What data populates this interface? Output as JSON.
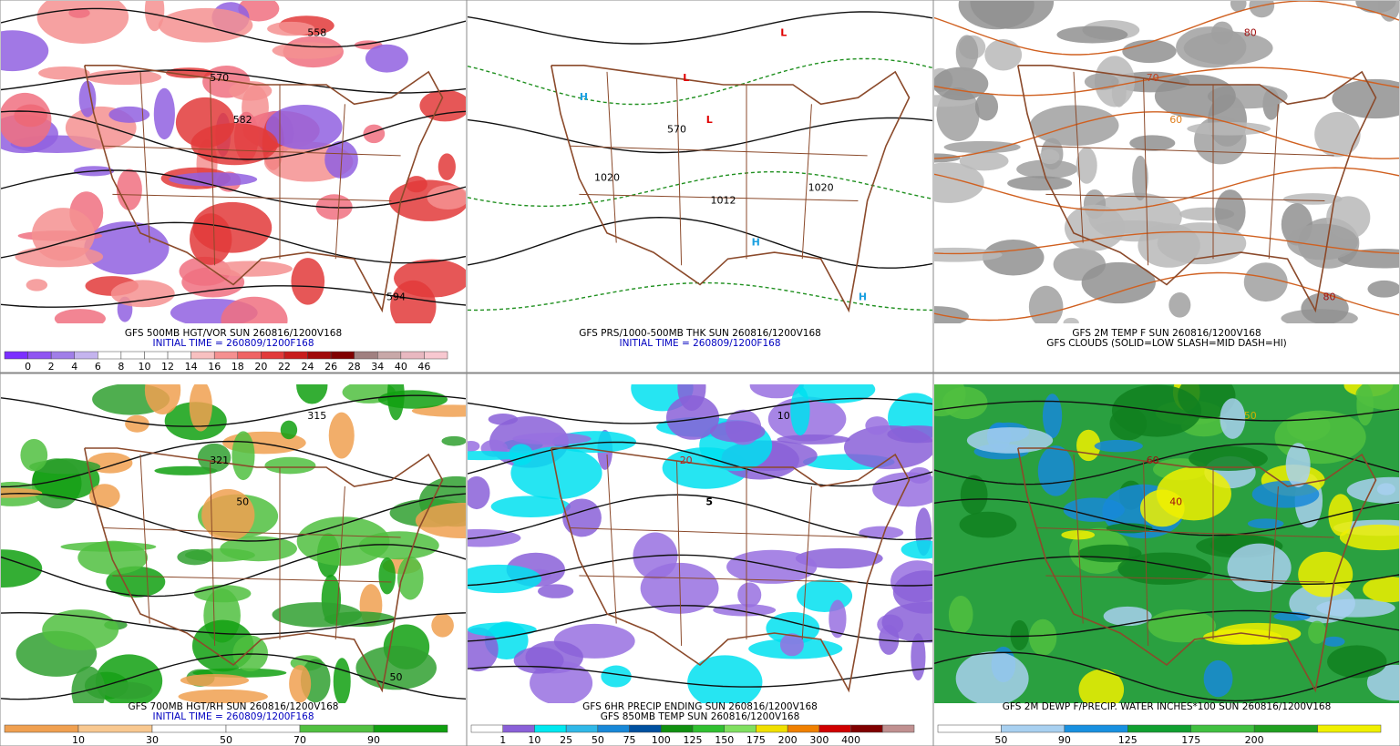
{
  "panels": [
    {
      "captions": [
        {
          "text": "GFS 500MB HGT/VOR SUN 260816/1200V168",
          "color": "#000000"
        },
        {
          "text": "INITIAL TIME = 260809/1200F168",
          "color": "#0000c0"
        }
      ],
      "map_labels": [
        {
          "text": "558",
          "color": "#000000"
        },
        {
          "text": "570",
          "color": "#000000"
        },
        {
          "text": "582",
          "color": "#000000"
        },
        {
          "text": "594",
          "color": "#000000"
        }
      ],
      "colorbar": {
        "labels": [
          0,
          2,
          4,
          6,
          8,
          10,
          12,
          14,
          16,
          18,
          20,
          22,
          24,
          26,
          28,
          34,
          40,
          46
        ],
        "colors": [
          "#7b2fff",
          "#8f55f2",
          "#a07ee8",
          "#c4b4ee",
          "#ffffff",
          "#ffffff",
          "#ffffff",
          "#ffffff",
          "#f8c0c0",
          "#f59090",
          "#ef6464",
          "#e23a3a",
          "#c81c1c",
          "#a00808",
          "#800000",
          "#a08080",
          "#c8a8a8",
          "#e8b8c0",
          "#f8c8d0"
        ]
      }
    },
    {
      "captions": [
        {
          "text": "GFS PRS/1000-500MB THK SUN 260816/1200V168",
          "color": "#000000"
        },
        {
          "text": "INITIAL TIME = 260809/1200F168",
          "color": "#0000c0"
        }
      ],
      "map_labels": [
        {
          "text": "L",
          "color": "#e00000"
        },
        {
          "text": "L",
          "color": "#e00000"
        },
        {
          "text": "L",
          "color": "#e00000"
        },
        {
          "text": "H",
          "color": "#1ca0e0"
        },
        {
          "text": "H",
          "color": "#1ca0e0"
        },
        {
          "text": "H",
          "color": "#1ca0e0"
        },
        {
          "text": "1012",
          "color": "#000000"
        },
        {
          "text": "1020",
          "color": "#000000"
        },
        {
          "text": "1020",
          "color": "#000000"
        },
        {
          "text": "570",
          "color": "#000000"
        }
      ]
    },
    {
      "captions": [
        {
          "text": "GFS 2M TEMP F SUN 260816/1200V168",
          "color": "#000000"
        },
        {
          "text": "GFS CLOUDS (SOLID=LOW SLASH=MID DASH=HI)",
          "color": "#000000"
        }
      ],
      "map_labels": [
        {
          "text": "80",
          "color": "#a01010"
        },
        {
          "text": "70",
          "color": "#c04020"
        },
        {
          "text": "60",
          "color": "#e08020"
        },
        {
          "text": "80",
          "color": "#a01010"
        }
      ]
    },
    {
      "captions": [
        {
          "text": "GFS 700MB HGT/RH SUN 260816/1200V168",
          "color": "#000000"
        },
        {
          "text": "INITIAL TIME = 260809/1200F168",
          "color": "#0000c0"
        }
      ],
      "map_labels": [
        {
          "text": "315",
          "color": "#000000"
        },
        {
          "text": "321",
          "color": "#000000"
        },
        {
          "text": "50",
          "color": "#000000"
        },
        {
          "text": "50",
          "color": "#000000"
        }
      ],
      "colorbar": {
        "labels": [
          10,
          30,
          50,
          70,
          90
        ],
        "colors": [
          "#f0a050",
          "#f8c890",
          "#ffffff",
          "#ffffff",
          "#50c040",
          "#10a010"
        ]
      }
    },
    {
      "captions": [
        {
          "text": "GFS 6HR PRECIP ENDING SUN 260816/1200V168",
          "color": "#000000"
        },
        {
          "text": "GFS 850MB TEMP SUN 260816/1200V168",
          "color": "#000000"
        }
      ],
      "map_labels": [
        {
          "text": "10",
          "color": "#000000"
        },
        {
          "text": "20",
          "color": "#c02020"
        },
        {
          "text": "5",
          "color": "#000000"
        }
      ],
      "colorbar": {
        "labels": [
          1,
          10,
          25,
          50,
          75,
          100,
          125,
          150,
          175,
          200,
          300,
          400
        ],
        "colors": [
          "#ffffff",
          "#8a60d8",
          "#00e8f0",
          "#30b8e8",
          "#1888d8",
          "#0050a0",
          "#109010",
          "#30c030",
          "#80e060",
          "#f0e000",
          "#f08000",
          "#d00000",
          "#800000",
          "#c09090"
        ]
      }
    },
    {
      "captions": [
        {
          "text": "GFS 2M DEWP F/PRECIP. WATER INCHES*100 SUN 260816/1200V168",
          "color": "#000000"
        }
      ],
      "map_labels": [
        {
          "text": "50",
          "color": "#d0b000"
        },
        {
          "text": "60",
          "color": "#a01010"
        },
        {
          "text": "40",
          "color": "#a01010"
        }
      ],
      "colorbar": {
        "labels": [
          50,
          90,
          125,
          175,
          200
        ],
        "colors": [
          "#ffffff",
          "#a8d0f0",
          "#1890e0",
          "#10a030",
          "#40c040",
          "#20a020",
          "#f0f000"
        ]
      }
    }
  ]
}
